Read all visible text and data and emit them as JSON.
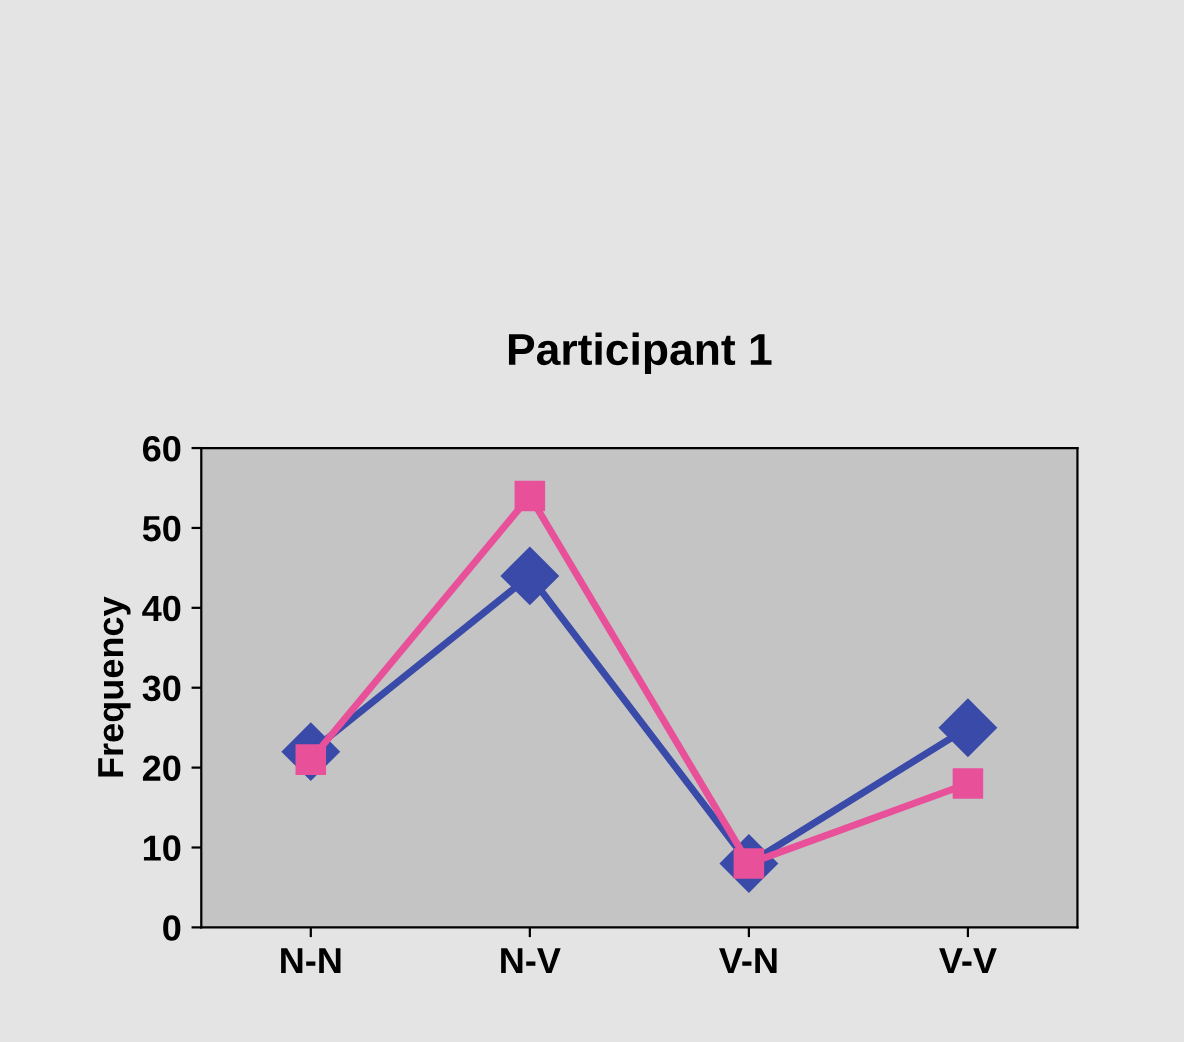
{
  "chart_data": {
    "type": "line",
    "title": "Participant 1",
    "ylabel": "Frequency",
    "categories": [
      "N-N",
      "N-V",
      "V-N",
      "V-V"
    ],
    "series": [
      {
        "color": "#3a4aa8",
        "values": [
          22,
          44,
          8,
          25
        ],
        "marker": "diamond"
      },
      {
        "color": "#e8509a",
        "values": [
          21,
          54,
          8,
          18
        ],
        "marker": "square"
      }
    ],
    "ylim": [
      0,
      60
    ],
    "yticks": [
      0,
      10,
      20,
      30,
      40,
      50,
      60
    ],
    "grid": false,
    "line_style": "solid"
  }
}
